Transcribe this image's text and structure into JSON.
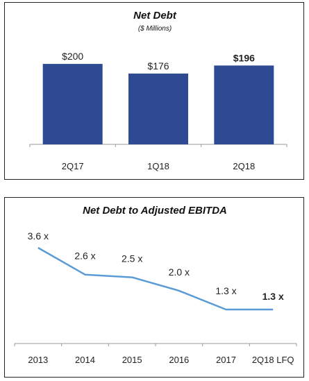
{
  "colors": {
    "bar": "#2d4a93",
    "line": "#5b9bd5",
    "axis": "#9a9a9a",
    "border": "#222222"
  },
  "chart_data": [
    {
      "type": "bar",
      "title": "Net Debt",
      "subtitle": "($ Millions)",
      "categories": [
        "2Q17",
        "1Q18",
        "2Q18"
      ],
      "values": [
        200,
        176,
        196
      ],
      "data_labels": [
        "$200",
        "$176",
        "$196"
      ],
      "bold_labels": [
        false,
        false,
        true
      ],
      "ylim": [
        0,
        245
      ],
      "grid": false
    },
    {
      "type": "line",
      "title": "Net Debt to Adjusted EBITDA",
      "categories": [
        "2013",
        "2014",
        "2015",
        "2016",
        "2017",
        "2Q18 LFQ"
      ],
      "values": [
        3.6,
        2.6,
        2.5,
        2.0,
        1.3,
        1.3
      ],
      "data_labels": [
        "3.6 x",
        "2.6 x",
        "2.5 x",
        "2.0 x",
        "1.3 x",
        "1.3 x"
      ],
      "bold_labels": [
        false,
        false,
        false,
        false,
        false,
        true
      ],
      "ylim": [
        0,
        4.0
      ],
      "grid": false
    }
  ]
}
